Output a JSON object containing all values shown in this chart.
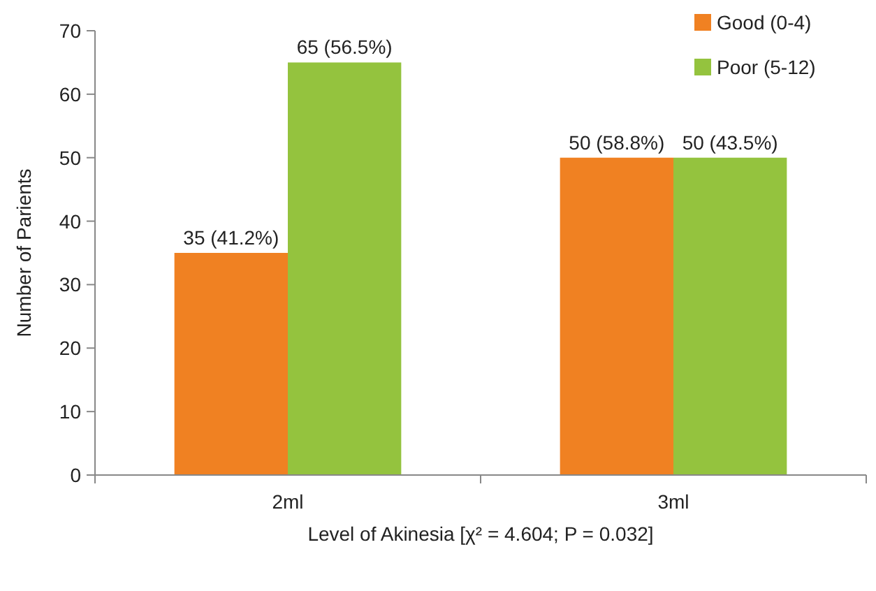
{
  "chart_data": {
    "type": "bar",
    "categories": [
      "2ml",
      "3ml"
    ],
    "series": [
      {
        "name": "Good (0-4)",
        "color": "#f08122",
        "values": [
          35,
          50
        ],
        "value_labels": [
          "35 (41.2%)",
          "50 (58.8%)"
        ]
      },
      {
        "name": "Poor (5-12)",
        "color": "#94c33e",
        "values": [
          65,
          50
        ],
        "value_labels": [
          "65 (56.5%)",
          "50 (43.5%)"
        ]
      }
    ],
    "xlabel": "Level of Akinesia [χ² = 4.604; P = 0.032]",
    "ylabel": "Number of Parients",
    "ylim": [
      0,
      70
    ],
    "yticks": [
      0,
      10,
      20,
      30,
      40,
      50,
      60,
      70
    ],
    "grid": false,
    "legend": "top right"
  }
}
